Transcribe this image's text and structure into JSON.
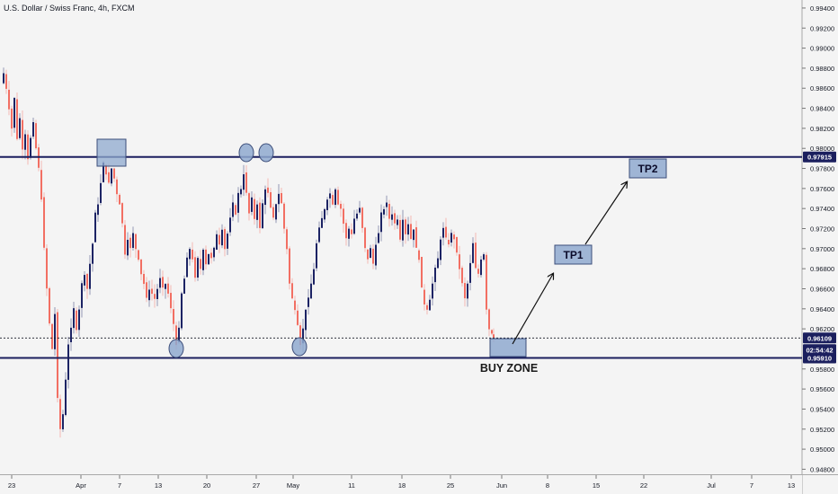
{
  "header": {
    "title": "U.S. Dollar / Swiss Franc, 4h, FXCM"
  },
  "chart_data": {
    "type": "candlestick",
    "ylim": [
      0.9475,
      0.9948
    ],
    "y_ticks": [
      "0.99400",
      "0.99200",
      "0.99000",
      "0.98800",
      "0.98600",
      "0.98400",
      "0.98200",
      "0.98000",
      "0.97800",
      "0.97600",
      "0.97400",
      "0.97200",
      "0.97000",
      "0.96800",
      "0.96600",
      "0.96400",
      "0.96200",
      "0.95800",
      "0.95600",
      "0.95400",
      "0.95200",
      "0.95000",
      "0.94800"
    ],
    "x_ticks": [
      "23",
      "Apr",
      "7",
      "13",
      "20",
      "27",
      "May",
      "11",
      "18",
      "25",
      "Jun",
      "8",
      "15",
      "22",
      "Jul",
      "7",
      "13"
    ],
    "levels": [
      {
        "name": "resistance",
        "value": 0.97915,
        "label": "0.97915",
        "color": "#1b1f5e"
      },
      {
        "name": "support",
        "value": 0.9591,
        "label": "0.95910",
        "color": "#1b1f5e"
      },
      {
        "name": "current-price",
        "value": 0.96109,
        "label": "0.96109",
        "color": "#131722"
      }
    ],
    "countdown": "02:54:42",
    "price_path": [
      [
        0,
        0.9865
      ],
      [
        3,
        0.9875
      ],
      [
        6,
        0.986
      ],
      [
        9,
        0.984
      ],
      [
        12,
        0.982
      ],
      [
        15,
        0.985
      ],
      [
        18,
        0.981
      ],
      [
        21,
        0.983
      ],
      [
        24,
        0.98
      ],
      [
        27,
        0.9815
      ],
      [
        30,
        0.979
      ],
      [
        33,
        0.981
      ],
      [
        36,
        0.9825
      ],
      [
        39,
        0.98
      ],
      [
        42,
        0.978
      ],
      [
        45,
        0.975
      ],
      [
        48,
        0.97
      ],
      [
        51,
        0.966
      ],
      [
        54,
        0.9625
      ],
      [
        57,
        0.96
      ],
      [
        60,
        0.9635
      ],
      [
        63,
        0.955
      ],
      [
        66,
        0.952
      ],
      [
        69,
        0.9535
      ],
      [
        72,
        0.957
      ],
      [
        75,
        0.9605
      ],
      [
        78,
        0.962
      ],
      [
        81,
        0.964
      ],
      [
        84,
        0.962
      ],
      [
        87,
        0.964
      ],
      [
        90,
        0.9665
      ],
      [
        93,
        0.9675
      ],
      [
        96,
        0.966
      ],
      [
        99,
        0.9685
      ],
      [
        102,
        0.9705
      ],
      [
        105,
        0.9735
      ],
      [
        108,
        0.9745
      ],
      [
        111,
        0.9765
      ],
      [
        114,
        0.9785
      ],
      [
        117,
        0.9775
      ],
      [
        120,
        0.9765
      ],
      [
        123,
        0.978
      ],
      [
        126,
        0.977
      ],
      [
        129,
        0.9755
      ],
      [
        132,
        0.9745
      ],
      [
        135,
        0.9725
      ],
      [
        138,
        0.9695
      ],
      [
        141,
        0.971
      ],
      [
        144,
        0.97
      ],
      [
        147,
        0.9715
      ],
      [
        150,
        0.97
      ],
      [
        153,
        0.969
      ],
      [
        156,
        0.9675
      ],
      [
        159,
        0.9665
      ],
      [
        162,
        0.965
      ],
      [
        165,
        0.966
      ],
      [
        168,
        0.9655
      ],
      [
        171,
        0.965
      ],
      [
        174,
        0.966
      ],
      [
        177,
        0.967
      ],
      [
        180,
        0.966
      ],
      [
        183,
        0.9665
      ],
      [
        186,
        0.9655
      ],
      [
        189,
        0.964
      ],
      [
        192,
        0.9625
      ],
      [
        195,
        0.9605
      ],
      [
        198,
        0.962
      ],
      [
        201,
        0.9655
      ],
      [
        204,
        0.967
      ],
      [
        207,
        0.969
      ],
      [
        210,
        0.97
      ],
      [
        213,
        0.969
      ],
      [
        216,
        0.967
      ],
      [
        219,
        0.969
      ],
      [
        222,
        0.968
      ],
      [
        225,
        0.97
      ],
      [
        228,
        0.9685
      ],
      [
        231,
        0.9695
      ],
      [
        234,
        0.969
      ],
      [
        237,
        0.97
      ],
      [
        240,
        0.9715
      ],
      [
        243,
        0.9705
      ],
      [
        246,
        0.972
      ],
      [
        249,
        0.97
      ],
      [
        252,
        0.9715
      ],
      [
        255,
        0.973
      ],
      [
        258,
        0.9745
      ],
      [
        261,
        0.9735
      ],
      [
        264,
        0.9755
      ],
      [
        267,
        0.976
      ],
      [
        270,
        0.9775
      ],
      [
        273,
        0.9755
      ],
      [
        276,
        0.9735
      ],
      [
        279,
        0.975
      ],
      [
        282,
        0.973
      ],
      [
        285,
        0.9745
      ],
      [
        288,
        0.972
      ],
      [
        291,
        0.9745
      ],
      [
        294,
        0.976
      ],
      [
        297,
        0.9755
      ],
      [
        300,
        0.974
      ],
      [
        303,
        0.973
      ],
      [
        306,
        0.9745
      ],
      [
        309,
        0.9755
      ],
      [
        312,
        0.9745
      ],
      [
        315,
        0.972
      ],
      [
        318,
        0.97
      ],
      [
        321,
        0.9665
      ],
      [
        324,
        0.965
      ],
      [
        327,
        0.964
      ],
      [
        330,
        0.9625
      ],
      [
        333,
        0.9605
      ],
      [
        336,
        0.962
      ],
      [
        339,
        0.964
      ],
      [
        342,
        0.965
      ],
      [
        345,
        0.9665
      ],
      [
        348,
        0.968
      ],
      [
        351,
        0.9705
      ],
      [
        354,
        0.972
      ],
      [
        357,
        0.973
      ],
      [
        360,
        0.974
      ],
      [
        363,
        0.975
      ],
      [
        366,
        0.9755
      ],
      [
        369,
        0.9745
      ],
      [
        372,
        0.976
      ],
      [
        375,
        0.9745
      ],
      [
        378,
        0.974
      ],
      [
        381,
        0.9725
      ],
      [
        384,
        0.971
      ],
      [
        387,
        0.972
      ],
      [
        390,
        0.9715
      ],
      [
        393,
        0.973
      ],
      [
        396,
        0.9735
      ],
      [
        399,
        0.974
      ],
      [
        402,
        0.972
      ],
      [
        405,
        0.97
      ],
      [
        408,
        0.969
      ],
      [
        411,
        0.97
      ],
      [
        414,
        0.9685
      ],
      [
        417,
        0.9705
      ],
      [
        420,
        0.9715
      ],
      [
        423,
        0.9735
      ],
      [
        426,
        0.974
      ],
      [
        429,
        0.9745
      ],
      [
        432,
        0.973
      ],
      [
        435,
        0.9735
      ],
      [
        438,
        0.9725
      ],
      [
        441,
        0.973
      ],
      [
        444,
        0.971
      ],
      [
        447,
        0.973
      ],
      [
        450,
        0.9715
      ],
      [
        453,
        0.9725
      ],
      [
        456,
        0.971
      ],
      [
        459,
        0.972
      ],
      [
        462,
        0.97
      ],
      [
        465,
        0.969
      ],
      [
        468,
        0.966
      ],
      [
        471,
        0.9645
      ],
      [
        474,
        0.964
      ],
      [
        477,
        0.965
      ],
      [
        480,
        0.9665
      ],
      [
        483,
        0.968
      ],
      [
        486,
        0.969
      ],
      [
        489,
        0.971
      ],
      [
        492,
        0.972
      ],
      [
        495,
        0.971
      ],
      [
        498,
        0.9705
      ],
      [
        501,
        0.9715
      ],
      [
        504,
        0.971
      ],
      [
        507,
        0.9695
      ],
      [
        510,
        0.968
      ],
      [
        513,
        0.9665
      ],
      [
        516,
        0.965
      ],
      [
        519,
        0.9665
      ],
      [
        522,
        0.9685
      ],
      [
        525,
        0.9705
      ],
      [
        528,
        0.968
      ],
      [
        531,
        0.9675
      ],
      [
        534,
        0.969
      ],
      [
        537,
        0.9695
      ],
      [
        540,
        0.964
      ],
      [
        543,
        0.962
      ],
      [
        546,
        0.9616
      ],
      [
        548,
        0.96109
      ]
    ]
  },
  "annotations": {
    "tp1": "TP1",
    "tp2": "TP2",
    "buy_zone": "BUY ZONE"
  }
}
